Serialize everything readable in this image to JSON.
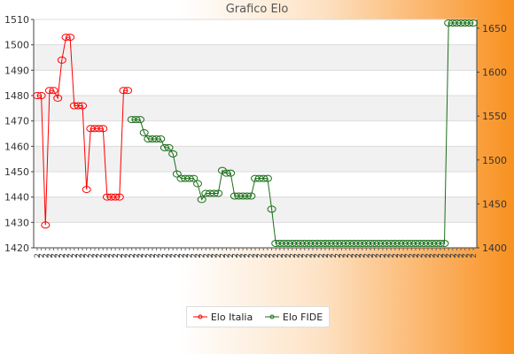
{
  "chart_data": {
    "type": "line",
    "title": "Grafico Elo",
    "left_axis": {
      "ylim": [
        1420,
        1510
      ],
      "ticks": [
        "1420",
        "1430",
        "1440",
        "1450",
        "1460",
        "1470",
        "1480",
        "1490",
        "1500",
        "1510"
      ]
    },
    "right_axis": {
      "ylim": [
        1400,
        1660
      ],
      "ticks": [
        "1400",
        "1450",
        "1500",
        "1550",
        "1600",
        "1650"
      ]
    },
    "x_count": 72,
    "x_tick_prefix": "2",
    "grid": "horizontal bands",
    "legend_position": "bottom",
    "series": [
      {
        "name": "Elo Italia",
        "axis": "left",
        "color": "#ff0000",
        "x": [
          0,
          1,
          2,
          3,
          4,
          5,
          6,
          7,
          8,
          9,
          10,
          11,
          12,
          13,
          14,
          15,
          16,
          17,
          18,
          19,
          20,
          21,
          22,
          23,
          24,
          25,
          26,
          27,
          28,
          29
        ],
        "values": [
          1480,
          1480,
          1429,
          1482,
          1482,
          1479,
          1494,
          1503,
          1503,
          1476,
          1476,
          1476,
          1443,
          1467,
          1467,
          1467,
          1467,
          1440,
          1440,
          1440,
          1440,
          1482,
          1482,
          null,
          null,
          null,
          null,
          null,
          null,
          null
        ]
      },
      {
        "name": "Elo FIDE",
        "axis": "right",
        "color": "#1a6e1a",
        "x": [
          23,
          24,
          25,
          26,
          27,
          28,
          29,
          30,
          31,
          32,
          33,
          34,
          35,
          36,
          37,
          38,
          39,
          40,
          41,
          42,
          43,
          44,
          45,
          46,
          47,
          48,
          49,
          50,
          51,
          52,
          53,
          54,
          55,
          56,
          57,
          58,
          59,
          60,
          61,
          62,
          63,
          64,
          65,
          66,
          67,
          68,
          69,
          70,
          71,
          72,
          73,
          74,
          75,
          76,
          77,
          78,
          79,
          80,
          81,
          82,
          83,
          84,
          85,
          86,
          87,
          88,
          89,
          90,
          91,
          92,
          93,
          94,
          95,
          96,
          97,
          98,
          99,
          100,
          101,
          102,
          103,
          104,
          105,
          106
        ],
        "values": [
          1546,
          1546,
          1546,
          1531,
          1524,
          1524,
          1524,
          1524,
          1514,
          1514,
          1507,
          1484,
          1479,
          1479,
          1479,
          1479,
          1473,
          1455,
          1462,
          1462,
          1462,
          1462,
          1488,
          1485,
          1485,
          1459,
          1459,
          1459,
          1459,
          1459,
          1479,
          1479,
          1479,
          1479,
          1444,
          1405,
          1405,
          1405,
          1405,
          1405,
          1405,
          1405,
          1405,
          1405,
          1405,
          1405,
          1405,
          1405,
          1405,
          1405,
          1405,
          1405,
          1405,
          1405,
          1405,
          1405,
          1405,
          1405,
          1405,
          1405,
          1405,
          1405,
          1405,
          1405,
          1405,
          1405,
          1405,
          1405,
          1405,
          1405,
          1405,
          1405,
          1405,
          1405,
          1405,
          1405,
          1405,
          1656,
          1656,
          1656,
          1656,
          1656,
          1656,
          1656
        ]
      }
    ]
  },
  "legend": {
    "italia": "Elo Italia",
    "fide": "Elo FIDE"
  }
}
